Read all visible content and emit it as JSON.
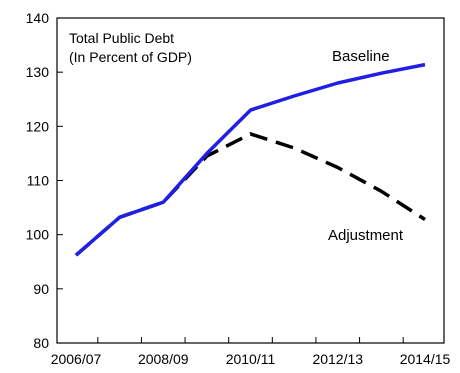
{
  "chart_data": {
    "type": "line",
    "title": "Total Public Debt",
    "subtitle": "(In Percent of GDP)",
    "xlabel": "",
    "ylabel": "",
    "x": [
      "2006/07",
      "2007/08",
      "2008/09",
      "2009/10",
      "2010/11",
      "2011/12",
      "2012/13",
      "2013/14",
      "2014/15"
    ],
    "x_tick_labels": [
      "2006/07",
      "2008/09",
      "2010/11",
      "2012/13",
      "2014/15"
    ],
    "ylim": [
      80,
      140
    ],
    "y_ticks": [
      80,
      90,
      100,
      110,
      120,
      130,
      140
    ],
    "grid": false,
    "series": [
      {
        "name": "Baseline",
        "color": "#1f1fe6",
        "dash": "solid",
        "values": [
          96.2,
          103.2,
          106.0,
          115.0,
          123.0,
          125.6,
          128.0,
          129.8,
          131.4
        ]
      },
      {
        "name": "Adjustment",
        "color": "#000000",
        "dash": "dashed",
        "values": [
          96.2,
          103.2,
          106.0,
          114.5,
          118.6,
          116.0,
          112.4,
          108.0,
          102.8
        ]
      }
    ]
  }
}
